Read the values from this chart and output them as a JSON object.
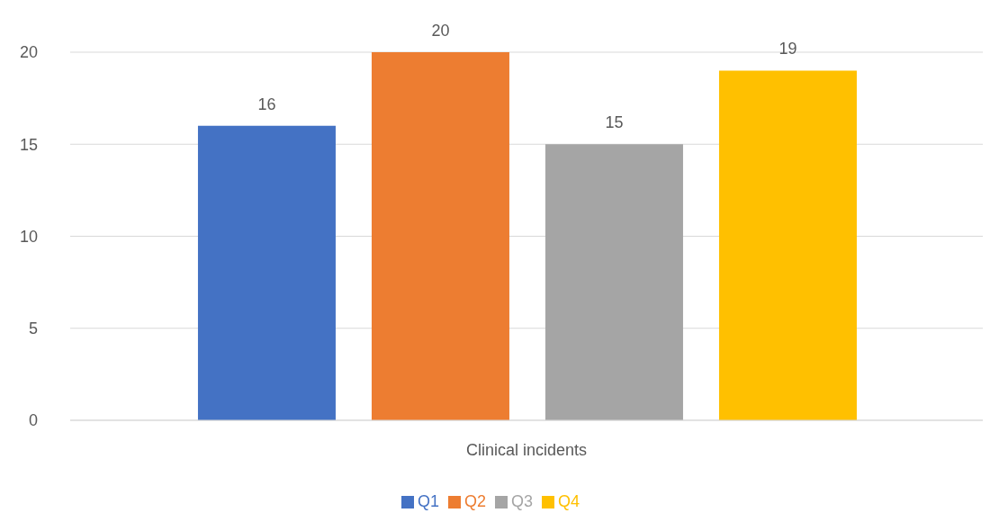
{
  "chart_data": {
    "type": "bar",
    "categories": [
      "Clinical incidents"
    ],
    "series": [
      {
        "name": "Q1",
        "color": "#4472c4",
        "values": [
          16
        ]
      },
      {
        "name": "Q2",
        "color": "#ed7d31",
        "values": [
          20
        ]
      },
      {
        "name": "Q3",
        "color": "#a5a5a5",
        "values": [
          15
        ]
      },
      {
        "name": "Q4",
        "color": "#ffc000",
        "values": [
          19
        ]
      }
    ],
    "ylim": [
      0,
      20
    ],
    "yticks": [
      0,
      5,
      10,
      15,
      20
    ],
    "grid": "y",
    "legend": "bottom",
    "data_labels": true
  }
}
